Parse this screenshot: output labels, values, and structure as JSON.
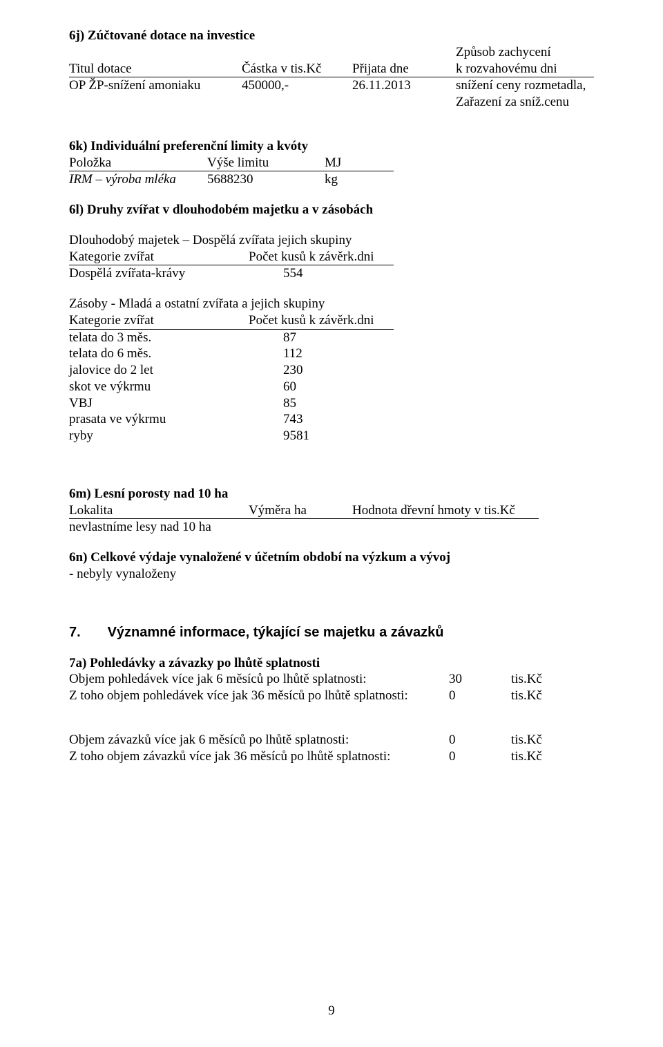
{
  "s6j": {
    "heading": "6j)  Zúčtované dotace na investice",
    "hdr": {
      "a": "Titul dotace",
      "b": "Částka v tis.Kč",
      "c": "Přijata dne",
      "d_line1": "Způsob zachycení",
      "d_line2": "k rozvahovému dni"
    },
    "row": {
      "a": "OP ŽP-snížení amoniaku",
      "b": "450000,-",
      "c": "26.11.2013",
      "d_line1": "snížení ceny rozmetadla,",
      "d_line2": "Zařazení za sníž.cenu"
    }
  },
  "s6k": {
    "heading": "6k) Individuální preferenční limity a kvóty",
    "hdr": {
      "a": "Položka",
      "b": "Výše limitu",
      "c": "MJ"
    },
    "row": {
      "a": "IRM – výroba mléka",
      "b": "5688230",
      "c": "kg"
    }
  },
  "s6l": {
    "heading": "6l) Druhy zvířat v dlouhodobém majetku a v zásobách",
    "group1_title": "Dlouhodobý majetek – Dospělá zvířata  jejich skupiny",
    "hdr": {
      "a": "Kategorie zvířat",
      "b": "Počet kusů k závěrk.dni"
    },
    "group1_rows": [
      {
        "a": "Dospělá zvířata-krávy",
        "b": "554"
      }
    ],
    "group2_title": "Zásoby  - Mladá a ostatní zvířata a jejich skupiny",
    "group2_rows": [
      {
        "a": "telata do 3 měs.",
        "b": "87"
      },
      {
        "a": "telata do 6 měs.",
        "b": "112"
      },
      {
        "a": "jalovice do  2 let",
        "b": "230"
      },
      {
        "a": "skot ve výkrmu",
        "b": "60"
      },
      {
        "a": "VBJ",
        "b": "85"
      },
      {
        "a": "prasata ve výkrmu",
        "b": "743"
      },
      {
        "a": "ryby",
        "b": "9581"
      }
    ]
  },
  "s6m": {
    "heading": "6m) Lesní porosty nad 10 ha",
    "hdr": {
      "a": "Lokalita",
      "b": "Výměra ha",
      "c": "Hodnota dřevní hmoty v tis.Kč"
    },
    "note": "nevlastníme lesy nad 10 ha"
  },
  "s6n": {
    "heading": "6n) Celkové výdaje vynaložené v účetním období na výzkum a vývoj",
    "note": "- nebyly vynaloženy"
  },
  "s7": {
    "num": "7.",
    "title": "Významné informace, týkající se majetku a závazků"
  },
  "s7a": {
    "heading": "7a) Pohledávky a závazky po lhůtě splatnosti",
    "rows1": [
      {
        "a": "Objem pohledávek více jak 6 měsíců po lhůtě splatnosti:",
        "b": "30",
        "c": "tis.Kč"
      },
      {
        "a": "Z toho objem pohledávek více jak 36 měsíců po lhůtě splatnosti:",
        "b": "0",
        "c": "tis.Kč"
      }
    ],
    "rows2": [
      {
        "a": "Objem závazků více jak 6 měsíců po lhůtě splatnosti:",
        "b": "0",
        "c": "tis.Kč"
      },
      {
        "a": "Z toho objem závazků více jak 36 měsíců po lhůtě splatnosti:",
        "b": "0",
        "c": "tis.Kč"
      }
    ]
  },
  "page_number": "9"
}
